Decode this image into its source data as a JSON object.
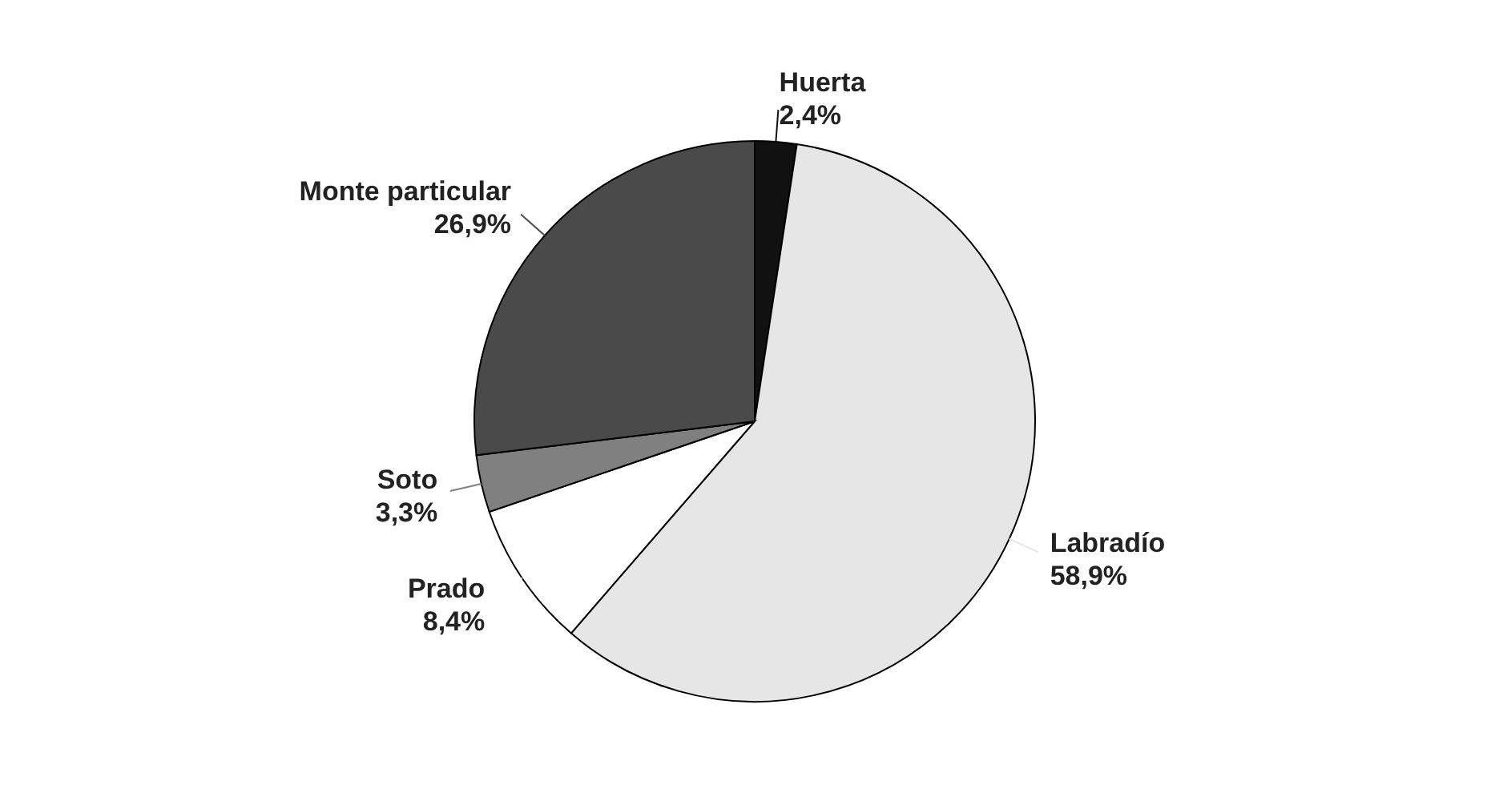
{
  "chart_data": {
    "type": "pie",
    "categories": [
      "Huerta",
      "Labradío",
      "Prado",
      "Soto",
      "Monte particular"
    ],
    "values": [
      2.4,
      58.9,
      8.4,
      3.3,
      26.9
    ],
    "value_labels": [
      "2,4%",
      "58,9%",
      "8,4%",
      "3,3%",
      "26,9%"
    ],
    "colors": [
      "#111111",
      "#e6e6e6",
      "#ffffff",
      "#808080",
      "#4a4a4a"
    ]
  }
}
